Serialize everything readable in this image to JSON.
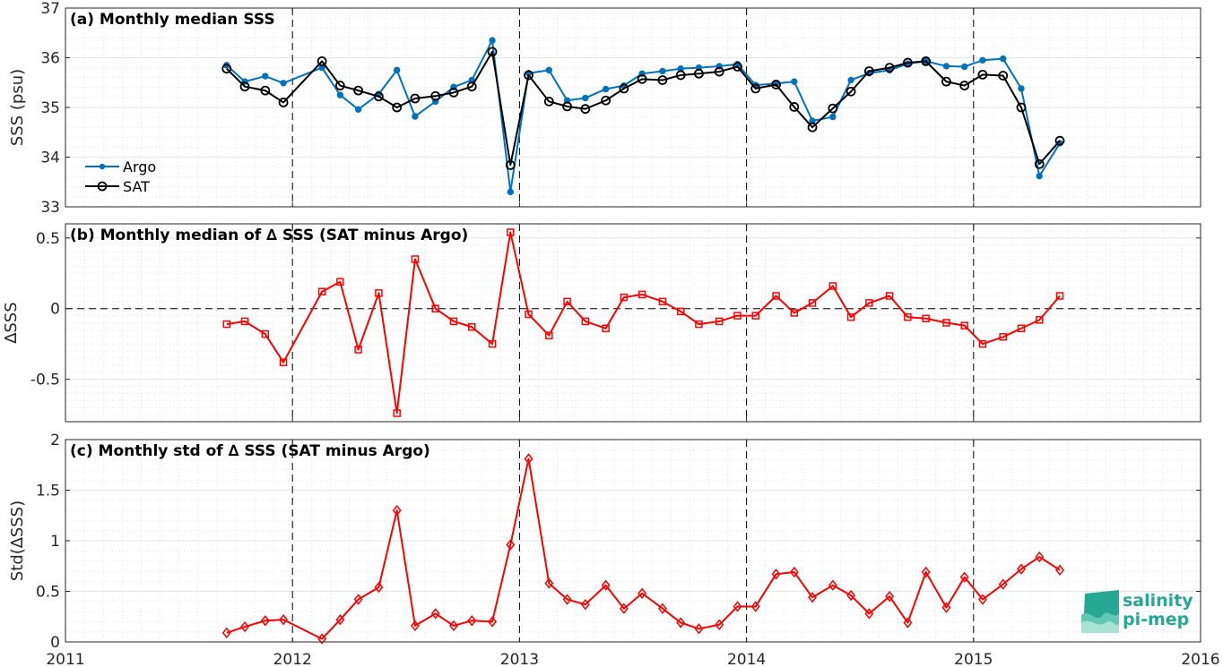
{
  "chart_data": [
    {
      "id": "a",
      "type": "line",
      "title": "(a) Monthly median SSS",
      "ylabel": "SSS (psu)",
      "xlim": [
        2011,
        2016
      ],
      "ylim": [
        33,
        37
      ],
      "xticks": [
        "2011",
        "2012",
        "2013",
        "2014",
        "2015",
        "2016"
      ],
      "yticks": [
        "33",
        "34",
        "35",
        "36",
        "37"
      ],
      "grid": "dotted minor",
      "legend": "left",
      "x": [
        2011.71,
        2011.79,
        2011.88,
        2011.96,
        2012.13,
        2012.21,
        2012.29,
        2012.38,
        2012.46,
        2012.54,
        2012.63,
        2012.71,
        2012.79,
        2012.88,
        2012.96,
        2013.04,
        2013.13,
        2013.21,
        2013.29,
        2013.38,
        2013.46,
        2013.54,
        2013.63,
        2013.71,
        2013.79,
        2013.88,
        2013.96,
        2014.04,
        2014.13,
        2014.21,
        2014.29,
        2014.38,
        2014.46,
        2014.54,
        2014.63,
        2014.71,
        2014.79,
        2014.88,
        2014.96,
        2015.04,
        2015.13,
        2015.21,
        2015.29,
        2015.38
      ],
      "series": [
        {
          "name": "Argo",
          "color": "#0072bd",
          "marker": "dot",
          "values": [
            35.85,
            35.52,
            35.63,
            35.49,
            35.8,
            35.25,
            34.96,
            35.27,
            35.75,
            34.82,
            35.12,
            35.41,
            35.55,
            36.35,
            33.3,
            35.69,
            35.75,
            35.14,
            35.19,
            35.37,
            35.44,
            35.68,
            35.73,
            35.78,
            35.8,
            35.83,
            35.87,
            35.45,
            35.48,
            35.52,
            34.73,
            34.81,
            35.55,
            35.69,
            35.75,
            35.88,
            35.93,
            35.83,
            35.82,
            35.95,
            35.98,
            35.38,
            33.62,
            34.28
          ]
        },
        {
          "name": "SAT",
          "color": "#000000",
          "marker": "circle",
          "values": [
            35.78,
            35.42,
            35.34,
            35.1,
            35.93,
            35.44,
            35.34,
            35.22,
            35.0,
            35.18,
            35.23,
            35.3,
            35.42,
            36.12,
            33.84,
            35.65,
            35.12,
            35.02,
            34.97,
            35.14,
            35.38,
            35.57,
            35.55,
            35.65,
            35.68,
            35.72,
            35.82,
            35.38,
            35.46,
            35.01,
            34.6,
            34.98,
            35.32,
            35.73,
            35.8,
            35.9,
            35.93,
            35.52,
            35.44,
            35.66,
            35.64,
            35.0,
            33.86,
            34.33
          ]
        }
      ]
    },
    {
      "id": "b",
      "type": "line",
      "title": "(b) Monthly median of ∆ SSS (SAT minus Argo)",
      "ylabel": "∆SSS",
      "xlim": [
        2011,
        2016
      ],
      "ylim": [
        -0.8,
        0.6
      ],
      "yticks": [
        "-0.5",
        "0",
        "0.5"
      ],
      "zero_line": "dashed",
      "x": [
        2011.71,
        2011.79,
        2011.88,
        2011.96,
        2012.13,
        2012.21,
        2012.29,
        2012.38,
        2012.46,
        2012.54,
        2012.63,
        2012.71,
        2012.79,
        2012.88,
        2012.96,
        2013.04,
        2013.13,
        2013.21,
        2013.29,
        2013.38,
        2013.46,
        2013.54,
        2013.63,
        2013.71,
        2013.79,
        2013.88,
        2013.96,
        2014.04,
        2014.13,
        2014.21,
        2014.29,
        2014.38,
        2014.46,
        2014.54,
        2014.63,
        2014.71,
        2014.79,
        2014.88,
        2014.96,
        2015.04,
        2015.13,
        2015.21,
        2015.29,
        2015.38
      ],
      "series": [
        {
          "name": "",
          "color": "#ff0000",
          "marker": "square",
          "values": [
            -0.11,
            -0.09,
            -0.18,
            -0.38,
            0.12,
            0.19,
            -0.29,
            0.11,
            -0.74,
            0.35,
            0.0,
            -0.09,
            -0.13,
            -0.25,
            0.54,
            -0.04,
            -0.19,
            0.05,
            -0.09,
            -0.14,
            0.08,
            0.1,
            0.05,
            -0.02,
            -0.11,
            -0.09,
            -0.05,
            -0.05,
            0.09,
            -0.03,
            0.04,
            0.16,
            -0.06,
            0.04,
            0.09,
            -0.06,
            -0.07,
            -0.1,
            -0.12,
            -0.25,
            -0.2,
            -0.14,
            -0.08,
            0.09
          ]
        }
      ]
    },
    {
      "id": "c",
      "type": "line",
      "title": "(c) Monthly std of ∆ SSS (SAT minus Argo)",
      "ylabel": "Std(∆SSS)",
      "xlim": [
        2011,
        2016
      ],
      "ylim": [
        0,
        2
      ],
      "yticks": [
        "0",
        "0.5",
        "1",
        "1.5",
        "2"
      ],
      "x": [
        2011.71,
        2011.79,
        2011.88,
        2011.96,
        2012.13,
        2012.21,
        2012.29,
        2012.38,
        2012.46,
        2012.54,
        2012.63,
        2012.71,
        2012.79,
        2012.88,
        2012.96,
        2013.04,
        2013.13,
        2013.21,
        2013.29,
        2013.38,
        2013.46,
        2013.54,
        2013.63,
        2013.71,
        2013.79,
        2013.88,
        2013.96,
        2014.04,
        2014.13,
        2014.21,
        2014.29,
        2014.38,
        2014.46,
        2014.54,
        2014.63,
        2014.71,
        2014.79,
        2014.88,
        2014.96,
        2015.04,
        2015.13,
        2015.21,
        2015.29,
        2015.38
      ],
      "series": [
        {
          "name": "",
          "color": "#ff0000",
          "marker": "diamond",
          "values": [
            0.09,
            0.15,
            0.21,
            0.22,
            0.03,
            0.22,
            0.42,
            0.54,
            1.3,
            0.16,
            0.28,
            0.16,
            0.21,
            0.2,
            0.96,
            1.81,
            0.58,
            0.42,
            0.37,
            0.56,
            0.33,
            0.48,
            0.33,
            0.19,
            0.13,
            0.17,
            0.35,
            0.35,
            0.67,
            0.69,
            0.44,
            0.56,
            0.46,
            0.28,
            0.45,
            0.19,
            0.69,
            0.34,
            0.64,
            0.42,
            0.57,
            0.72,
            0.84,
            0.71
          ]
        }
      ]
    }
  ],
  "logo": {
    "line1": "salinity",
    "line2": "pi-mep",
    "color": "#27a795"
  }
}
